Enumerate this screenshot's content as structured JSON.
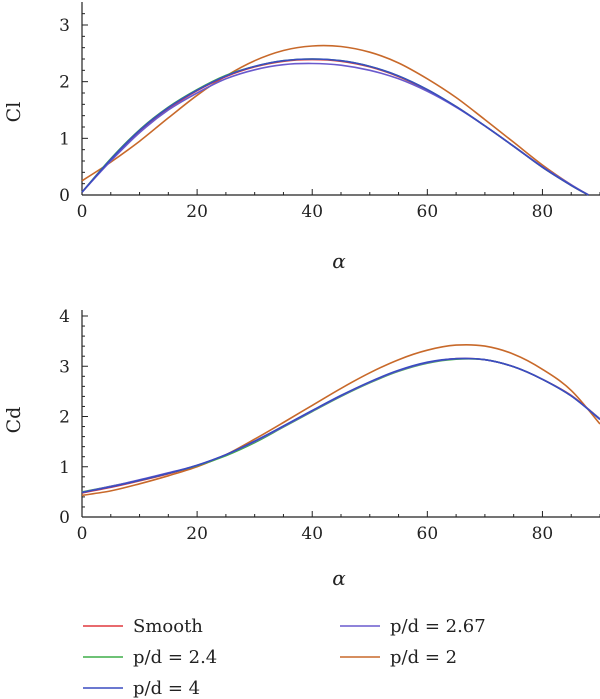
{
  "chart_data": [
    {
      "type": "line",
      "xlabel": "α",
      "ylabel": "Cl",
      "xlim": [
        0,
        90
      ],
      "ylim": [
        0,
        3.3
      ],
      "xticks": [
        0,
        20,
        40,
        60,
        80
      ],
      "yticks": [
        0,
        1,
        2,
        3
      ],
      "x": [
        0,
        5,
        10,
        15,
        20,
        25,
        30,
        35,
        40,
        45,
        50,
        55,
        60,
        65,
        70,
        75,
        80,
        85,
        88
      ],
      "series": [
        {
          "name": "Smooth",
          "color": "#e0393e",
          "values": [
            0.05,
            0.62,
            1.12,
            1.52,
            1.84,
            2.09,
            2.26,
            2.36,
            2.39,
            2.36,
            2.26,
            2.09,
            1.85,
            1.56,
            1.22,
            0.86,
            0.49,
            0.17,
            0.0
          ]
        },
        {
          "name": "p/d = 2.4",
          "color": "#3fae49",
          "values": [
            0.05,
            0.64,
            1.15,
            1.55,
            1.86,
            2.11,
            2.27,
            2.37,
            2.4,
            2.37,
            2.27,
            2.1,
            1.86,
            1.56,
            1.22,
            0.86,
            0.49,
            0.17,
            0.0
          ]
        },
        {
          "name": "p/d = 4",
          "color": "#3a4cc0",
          "values": [
            0.05,
            0.63,
            1.14,
            1.54,
            1.85,
            2.1,
            2.27,
            2.37,
            2.4,
            2.37,
            2.27,
            2.1,
            1.86,
            1.56,
            1.22,
            0.86,
            0.49,
            0.17,
            0.0
          ]
        },
        {
          "name": "p/d = 2.67",
          "color": "#6a5acd",
          "values": [
            0.05,
            0.6,
            1.1,
            1.5,
            1.8,
            2.05,
            2.21,
            2.3,
            2.32,
            2.29,
            2.2,
            2.05,
            1.83,
            1.55,
            1.22,
            0.86,
            0.5,
            0.18,
            0.0
          ]
        },
        {
          "name": "p/d = 2",
          "color": "#c8692a",
          "values": [
            0.25,
            0.58,
            0.95,
            1.36,
            1.76,
            2.1,
            2.37,
            2.55,
            2.63,
            2.62,
            2.52,
            2.33,
            2.05,
            1.72,
            1.33,
            0.93,
            0.53,
            0.18,
            0.0
          ]
        }
      ]
    },
    {
      "type": "line",
      "xlabel": "α",
      "ylabel": "Cd",
      "xlim": [
        0,
        90
      ],
      "ylim": [
        0,
        4
      ],
      "xticks": [
        0,
        20,
        40,
        60,
        80
      ],
      "yticks": [
        0,
        1,
        2,
        3,
        4
      ],
      "x": [
        0,
        5,
        10,
        15,
        20,
        25,
        30,
        35,
        40,
        45,
        50,
        55,
        60,
        65,
        70,
        75,
        80,
        85,
        90
      ],
      "series": [
        {
          "name": "Smooth",
          "color": "#e0393e",
          "values": [
            0.48,
            0.59,
            0.72,
            0.86,
            1.02,
            1.24,
            1.5,
            1.8,
            2.11,
            2.41,
            2.68,
            2.91,
            3.07,
            3.15,
            3.13,
            2.99,
            2.74,
            2.42,
            1.95
          ]
        },
        {
          "name": "p/d = 2.4",
          "color": "#3fae49",
          "values": [
            0.5,
            0.61,
            0.73,
            0.87,
            1.02,
            1.22,
            1.48,
            1.79,
            2.1,
            2.4,
            2.67,
            2.9,
            3.06,
            3.14,
            3.13,
            2.99,
            2.74,
            2.41,
            1.95
          ]
        },
        {
          "name": "p/d = 4",
          "color": "#3a4cc0",
          "values": [
            0.49,
            0.6,
            0.73,
            0.87,
            1.03,
            1.24,
            1.51,
            1.81,
            2.12,
            2.42,
            2.69,
            2.92,
            3.08,
            3.15,
            3.13,
            2.99,
            2.74,
            2.41,
            1.94
          ]
        },
        {
          "name": "p/d = 2.67",
          "color": "#6a5acd",
          "values": [
            0.49,
            0.61,
            0.74,
            0.88,
            1.03,
            1.24,
            1.5,
            1.8,
            2.11,
            2.41,
            2.68,
            2.91,
            3.07,
            3.15,
            3.13,
            2.99,
            2.74,
            2.41,
            1.95
          ]
        },
        {
          "name": "p/d = 2",
          "color": "#c8692a",
          "values": [
            0.43,
            0.52,
            0.66,
            0.82,
            1.0,
            1.24,
            1.55,
            1.88,
            2.22,
            2.56,
            2.87,
            3.13,
            3.32,
            3.42,
            3.4,
            3.24,
            2.94,
            2.52,
            1.85
          ]
        }
      ]
    }
  ],
  "legend": [
    {
      "label": "Smooth",
      "color": "#e0393e"
    },
    {
      "label": "p/d = 2.4",
      "color": "#3fae49"
    },
    {
      "label": "p/d = 4",
      "color": "#3a4cc0"
    },
    {
      "label": "p/d = 2.67",
      "color": "#6a5acd"
    },
    {
      "label": "p/d = 2",
      "color": "#c8692a"
    }
  ]
}
